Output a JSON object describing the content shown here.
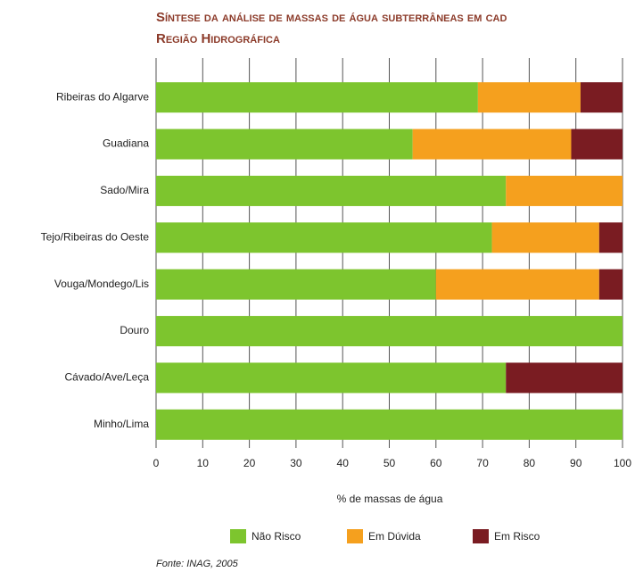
{
  "chart_data": {
    "type": "stacked_barh",
    "title": [
      "Síntese da análise de massas de água subterrâneas em cad",
      "Região Hidrográfica"
    ],
    "categories": [
      "Ribeiras do Algarve",
      "Guadiana",
      "Sado/Mira",
      "Tejo/Ribeiras do Oeste",
      "Vouga/Mondego/Lis",
      "Douro",
      "Cávado/Ave/Leça",
      "Minho/Lima"
    ],
    "series": [
      {
        "name": "Não Risco",
        "color": "#7dc52e",
        "values": [
          69,
          55,
          75,
          72,
          60,
          100,
          75,
          100
        ]
      },
      {
        "name": "Em Dúvida",
        "color": "#f5a01e",
        "values": [
          22,
          34,
          25,
          23,
          35,
          0,
          0,
          0
        ]
      },
      {
        "name": "Em Risco",
        "color": "#7a1c22",
        "values": [
          9,
          11,
          0,
          5,
          5,
          0,
          25,
          0
        ]
      }
    ],
    "xlim": [
      0,
      100
    ],
    "xticks": [
      0,
      10,
      20,
      30,
      40,
      50,
      60,
      70,
      80,
      90,
      100
    ],
    "xlabel": "% de massas de água",
    "grid": true,
    "legend": "bottom",
    "source": "Fonte: INAG, 2005"
  }
}
